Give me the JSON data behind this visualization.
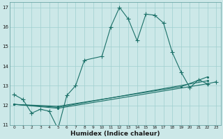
{
  "title": "",
  "xlabel": "Humidex (Indice chaleur)",
  "bg_color": "#cce8e8",
  "grid_color": "#9fcfcf",
  "line_color": "#1a7068",
  "xlim": [
    -0.5,
    23.5
  ],
  "ylim": [
    11.0,
    17.25
  ],
  "yticks": [
    11,
    12,
    13,
    14,
    15,
    16,
    17
  ],
  "xticks": [
    0,
    1,
    2,
    3,
    4,
    5,
    6,
    7,
    8,
    9,
    10,
    11,
    12,
    13,
    14,
    15,
    16,
    17,
    18,
    19,
    20,
    21,
    22,
    23
  ],
  "line1_x": [
    0,
    1,
    2,
    3,
    4,
    5,
    6,
    7,
    8,
    10,
    11,
    12,
    13,
    14,
    15,
    16,
    17,
    18,
    19,
    20,
    21,
    22,
    23
  ],
  "line1_y": [
    12.55,
    12.3,
    11.6,
    11.8,
    11.7,
    10.8,
    12.5,
    13.0,
    14.3,
    14.5,
    16.0,
    17.0,
    16.4,
    15.3,
    16.65,
    16.6,
    16.2,
    14.7,
    13.7,
    12.9,
    13.3,
    13.1,
    13.2
  ],
  "line2_x": [
    0,
    5,
    22
  ],
  "line2_y": [
    12.05,
    11.85,
    13.1
  ],
  "line3_x": [
    0,
    5,
    22
  ],
  "line3_y": [
    12.05,
    11.9,
    13.25
  ],
  "line4_x": [
    0,
    5,
    19,
    22
  ],
  "line4_y": [
    12.05,
    11.95,
    12.95,
    13.45
  ]
}
